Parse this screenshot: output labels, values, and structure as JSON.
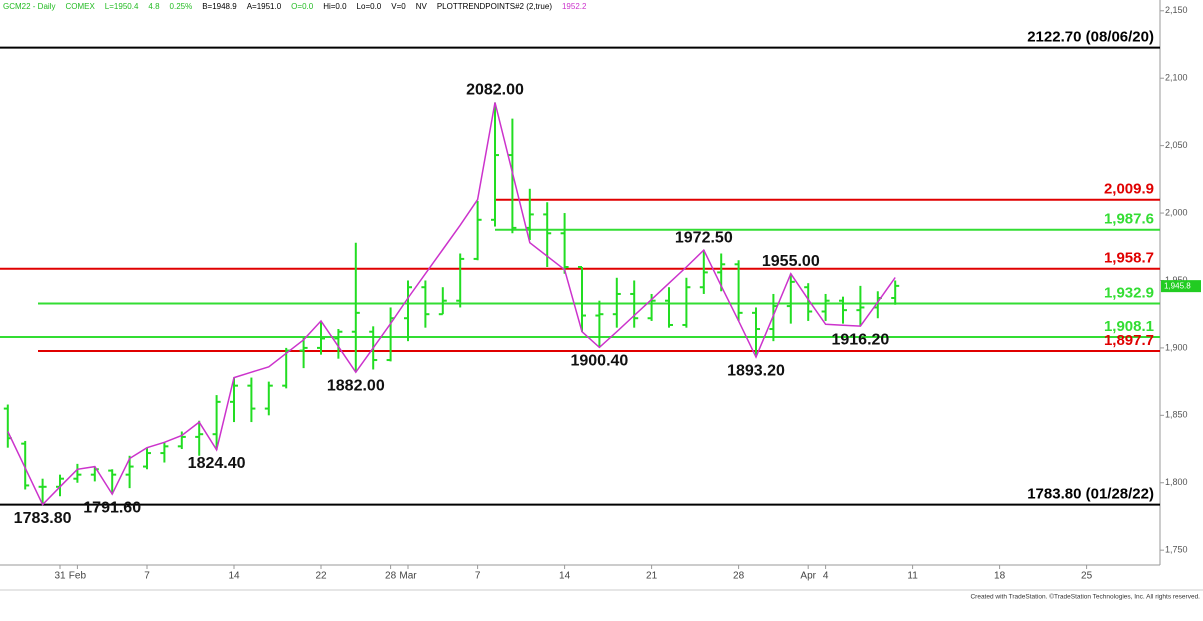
{
  "chart_data": {
    "type": "ohlc",
    "header": [
      {
        "text": "GCM22 - Daily",
        "color": "#22bb22"
      },
      {
        "text": "COMEX",
        "color": "#22bb22"
      },
      {
        "text": "L=1950.4",
        "color": "#22bb22"
      },
      {
        "text": "4.8",
        "color": "#22bb22"
      },
      {
        "text": "0.25%",
        "color": "#22bb22"
      },
      {
        "text": "B=1948.9",
        "color": "#000000"
      },
      {
        "text": "A=1951.0",
        "color": "#000000"
      },
      {
        "text": "O=0.0",
        "color": "#22bb22"
      },
      {
        "text": "Hi=0.0",
        "color": "#000000"
      },
      {
        "text": "Lo=0.0",
        "color": "#000000"
      },
      {
        "text": "V=0",
        "color": "#000000"
      },
      {
        "text": "NV",
        "color": "#000000"
      },
      {
        "text": "PLOTTRENDPOINTS#2 (2,true)",
        "color": "#000000"
      },
      {
        "text": "1952.2",
        "color": "#cc33cc"
      }
    ],
    "footer": "Created with TradeStation. ©TradeStation Technologies, Inc. All rights reserved.",
    "categories": [
      null,
      null,
      null,
      "31",
      "Feb",
      null,
      null,
      null,
      "7",
      null,
      null,
      null,
      null,
      "14",
      null,
      null,
      null,
      null,
      "22",
      null,
      null,
      null,
      "28",
      "Mar",
      null,
      null,
      null,
      "7",
      null,
      null,
      null,
      null,
      "14",
      null,
      null,
      null,
      null,
      "21",
      null,
      null,
      null,
      null,
      "28",
      null,
      null,
      null,
      "Apr",
      "4",
      null,
      null,
      null,
      null,
      "11",
      null,
      null,
      null,
      null,
      "18",
      null,
      null,
      null,
      null,
      "25",
      null,
      null,
      null,
      null
    ],
    "open": [
      1855,
      1829,
      1797,
      1797,
      1803,
      1806,
      1809,
      1806,
      1812,
      1822,
      1827,
      1834,
      1836,
      1860,
      1872,
      1855,
      1872,
      1898,
      1900,
      1907,
      1912,
      1912,
      1891,
      1922,
      1945,
      1925,
      1935,
      1966,
      1995,
      2043,
      1989,
      1999,
      1985,
      1960,
      1924,
      1925,
      1940,
      1922,
      1935,
      1917,
      1945,
      1956,
      1962,
      1926,
      1914,
      1931,
      1945,
      1927,
      1935,
      1928,
      1930,
      1937,
      null,
      null,
      null,
      null,
      null,
      null,
      null,
      null,
      null,
      null,
      null,
      null,
      null,
      null,
      null
    ],
    "high": [
      1858,
      1831,
      1803,
      1806,
      1814,
      1812,
      1810,
      1820,
      1826,
      1830,
      1838,
      1846,
      1865,
      1878,
      1878,
      1875,
      1900,
      1908,
      1920,
      1914,
      1978,
      1916,
      1930,
      1950,
      1950,
      1945,
      1970,
      2009,
      2082,
      2070,
      2018,
      2008,
      2000,
      1960,
      1935,
      1952,
      1950,
      1940,
      1945,
      1952,
      1972.5,
      1970,
      1965,
      1930,
      1940,
      1955,
      1948,
      1940,
      1938,
      1946,
      1942,
      1950,
      null,
      null,
      null,
      null,
      null,
      null,
      null,
      null,
      null,
      null,
      null,
      null,
      null,
      null,
      null
    ],
    "low": [
      1826,
      1795,
      1783.8,
      1790,
      1800,
      1801,
      1791.6,
      1796,
      1810,
      1815,
      1825,
      1820,
      1824.4,
      1845,
      1845,
      1850,
      1870,
      1885,
      1895,
      1892,
      1882,
      1884,
      1890,
      1905,
      1915,
      1925,
      1930,
      1965,
      1990,
      1985,
      1980,
      1960,
      1955,
      1912,
      1900.4,
      1915,
      1915,
      1920,
      1915,
      1915,
      1940,
      1942,
      1920,
      1893.2,
      1905,
      1918,
      1920,
      1920,
      1918,
      1916.2,
      1922,
      1932,
      null,
      null,
      null,
      null,
      null,
      null,
      null,
      null,
      null,
      null,
      null,
      null,
      null,
      null,
      null
    ],
    "close": [
      1833,
      1798,
      1797,
      1803,
      1806,
      1810,
      1806,
      1812,
      1822,
      1827,
      1834,
      1836,
      1860,
      1872,
      1855,
      1872,
      1898,
      1900,
      1907,
      1912,
      1926,
      1891,
      1922,
      1945,
      1925,
      1935,
      1966,
      1995,
      2043,
      1989,
      1999,
      1985,
      1960,
      1924,
      1925,
      1940,
      1922,
      1935,
      1917,
      1945,
      1956,
      1962,
      1926,
      1914,
      1931,
      1949,
      1927,
      1935,
      1928,
      1930,
      1937,
      1946,
      null,
      null,
      null,
      null,
      null,
      null,
      null,
      null,
      null,
      null,
      null,
      null,
      null,
      null,
      null
    ],
    "bar_color": "#22dd22",
    "trend": {
      "color": "#cc33cc",
      "values": [
        1838,
        1811,
        1783.8,
        1797,
        1810,
        1812,
        1791.6,
        1818,
        1826,
        1830,
        1835,
        1845,
        1824.4,
        1878,
        1882,
        1886,
        1896,
        1906,
        1920,
        1901,
        1882,
        1900,
        1918,
        1937,
        1955,
        1973,
        1991,
        2010,
        2082,
        2030,
        1978,
        1968,
        1958,
        1912,
        1900.4,
        1912,
        1924,
        1936,
        1948,
        1960,
        1972.5,
        1946,
        1920,
        1893.2,
        1924,
        1955,
        1936,
        1917.5,
        1916.8,
        1916.2,
        1934,
        1952.2,
        null,
        null,
        null,
        null,
        null,
        null,
        null,
        null,
        null,
        null,
        null,
        null,
        null,
        null,
        null
      ],
      "value_labels": [
        null,
        null,
        "1783.80",
        null,
        null,
        null,
        "1791.60",
        null,
        null,
        null,
        null,
        null,
        "1824.40",
        null,
        null,
        null,
        null,
        null,
        null,
        null,
        "1882.00",
        null,
        null,
        null,
        null,
        null,
        null,
        null,
        "2082.00",
        null,
        null,
        null,
        null,
        null,
        "1900.40",
        null,
        null,
        null,
        null,
        null,
        "1972.50",
        null,
        null,
        "1893.20",
        null,
        "1955.00",
        null,
        null,
        null,
        "1916.20",
        null,
        null,
        null,
        null,
        null,
        null,
        null,
        null,
        null,
        null,
        null,
        null,
        null,
        null,
        null,
        null,
        null
      ]
    },
    "levels": [
      {
        "value": 2122.7,
        "label": "2122.70 (08/06/20)",
        "color": "#000000"
      },
      {
        "value": 2009.9,
        "label": "2,009.9",
        "color": "#e00000"
      },
      {
        "value": 1987.6,
        "label": "1,987.6",
        "color": "#33dd33"
      },
      {
        "value": 1958.7,
        "label": "1,958.7",
        "color": "#e00000"
      },
      {
        "value": 1932.9,
        "label": "1,932.9",
        "color": "#33dd33"
      },
      {
        "value": 1908.1,
        "label": "1,908.1",
        "color": "#33dd33"
      },
      {
        "value": 1897.7,
        "label": "1,897.7",
        "color": "#e00000"
      },
      {
        "value": 1783.8,
        "label": "1783.80 (01/28/22)",
        "color": "#000000"
      }
    ],
    "last_price": {
      "value": 1945.8,
      "label": "1,945.8",
      "color": "#22cc22"
    },
    "ylim": [
      1739,
      2158
    ],
    "yticks": [
      {
        "value": 1750,
        "label": "1,750"
      },
      {
        "value": 1800,
        "label": "1,800"
      },
      {
        "value": 1850,
        "label": "1,850"
      },
      {
        "value": 1900,
        "label": "1,900"
      },
      {
        "value": 1950,
        "label": "1,950"
      },
      {
        "value": 2000,
        "label": "2,000"
      },
      {
        "value": 2050,
        "label": "2,050"
      },
      {
        "value": 2100,
        "label": "2,100"
      },
      {
        "value": 2150,
        "label": "2,150"
      }
    ]
  }
}
